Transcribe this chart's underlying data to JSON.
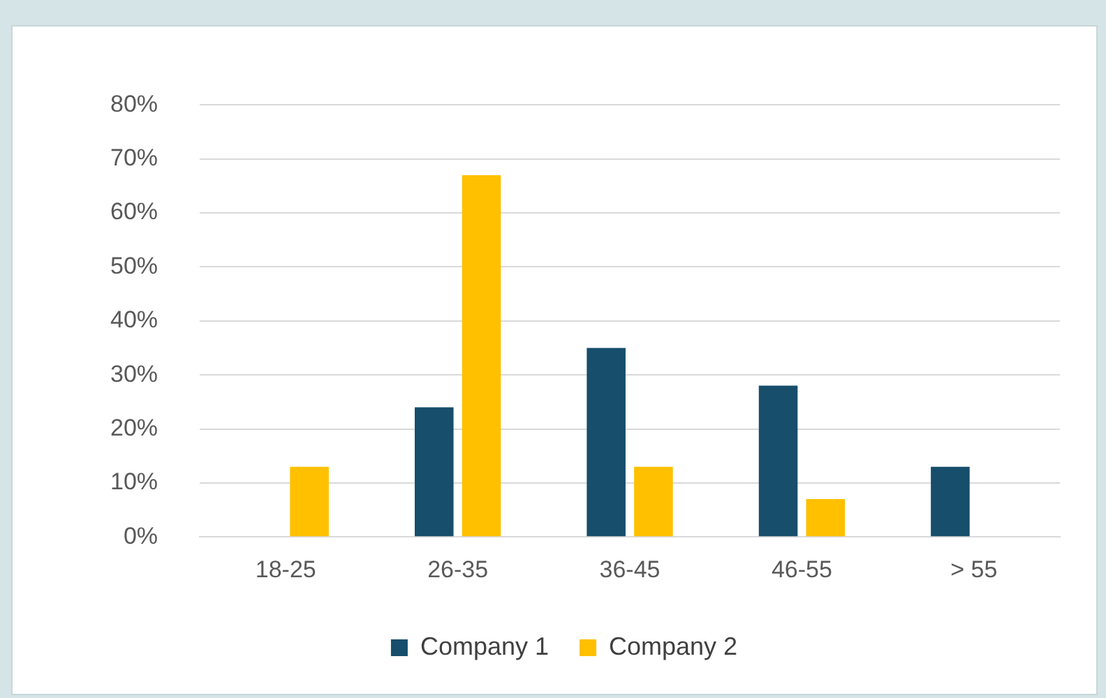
{
  "chart_data": {
    "type": "bar",
    "categories": [
      "18-25",
      "26-35",
      "36-45",
      "46-55",
      "> 55"
    ],
    "series": [
      {
        "name": "Company 1",
        "color": "#164e6b",
        "values": [
          null,
          24,
          35,
          28,
          13
        ]
      },
      {
        "name": "Company 2",
        "color": "#ffc000",
        "values": [
          13,
          67,
          13,
          7,
          null
        ]
      }
    ],
    "ylim": [
      0,
      80
    ],
    "yticks": [
      {
        "value": 0,
        "label": "0%"
      },
      {
        "value": 10,
        "label": "10%"
      },
      {
        "value": 20,
        "label": "20%"
      },
      {
        "value": 30,
        "label": "30%"
      },
      {
        "value": 40,
        "label": "40%"
      },
      {
        "value": 50,
        "label": "50%"
      },
      {
        "value": 60,
        "label": "60%"
      },
      {
        "value": 70,
        "label": "70%"
      },
      {
        "value": 80,
        "label": "80%"
      }
    ],
    "grid": "y",
    "legend": "bottom"
  }
}
